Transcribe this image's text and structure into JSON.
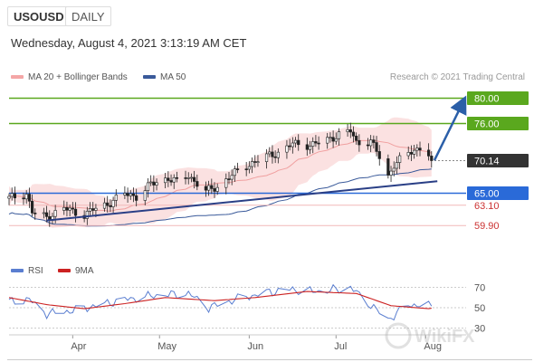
{
  "header": {
    "symbol": "USOUSD",
    "timeframe": "DAILY"
  },
  "timestamp": "Wednesday, August 4, 2021 3:13:19 AM CET",
  "legend": {
    "ma20": {
      "label": "MA 20 + Bollinger Bands",
      "color": "#f4a6a6"
    },
    "ma50": {
      "label": "MA 50",
      "color": "#3a5a9a"
    }
  },
  "credit": "Research © 2021 Trading Central",
  "rsi_legend": {
    "rsi": {
      "label": "RSI",
      "color": "#5a7ed0"
    },
    "ma9": {
      "label": "9MA",
      "color": "#cc2222"
    }
  },
  "watermark": "WikiFX",
  "chart_data": [
    {
      "type": "candlestick",
      "title": "",
      "ylim": [
        55.5,
        81.5
      ],
      "x_tick_labels": [
        "Apr",
        "May",
        "Jun",
        "Jul",
        "Aug"
      ],
      "levels": [
        {
          "value": 80.0,
          "label": "80.00",
          "color": "#5aa81e",
          "style": "solid-line"
        },
        {
          "value": 76.0,
          "label": "76.00",
          "color": "#5aa81e",
          "style": "solid-line"
        },
        {
          "value": 70.14,
          "label": "70.14",
          "color": "#333333",
          "style": "current-price"
        },
        {
          "value": 65.0,
          "label": "65.00",
          "color": "#2a6ad8",
          "style": "solid-line"
        },
        {
          "value": 63.1,
          "label": "63.10",
          "color": "#cc3333",
          "style": "light-line"
        },
        {
          "value": 59.9,
          "label": "59.90",
          "color": "#cc3333",
          "style": "light-line"
        }
      ],
      "trendline": {
        "start": {
          "date": "2021-03-23",
          "value": 60.7
        },
        "end": {
          "date": "2021-08-05",
          "value": 66.9
        }
      },
      "projection": {
        "start": {
          "date": "2021-08-04",
          "value": 70.2
        },
        "end": {
          "date": "2021-08-13",
          "value": 80.0
        }
      },
      "close_series": [
        {
          "date": "2021-03-10",
          "close": 64.2
        },
        {
          "date": "2021-03-16",
          "close": 64.9
        },
        {
          "date": "2021-03-18",
          "close": 62.0
        },
        {
          "date": "2021-03-23",
          "close": 61.2
        },
        {
          "date": "2021-03-29",
          "close": 62.6
        },
        {
          "date": "2021-04-05",
          "close": 61.6
        },
        {
          "date": "2021-04-08",
          "close": 62.4
        },
        {
          "date": "2021-04-13",
          "close": 63.3
        },
        {
          "date": "2021-04-19",
          "close": 64.9
        },
        {
          "date": "2021-04-23",
          "close": 64.5
        },
        {
          "date": "2021-04-28",
          "close": 66.4
        },
        {
          "date": "2021-05-04",
          "close": 67.4
        },
        {
          "date": "2021-05-07",
          "close": 66.8
        },
        {
          "date": "2021-05-11",
          "close": 67.8
        },
        {
          "date": "2021-05-17",
          "close": 65.3
        },
        {
          "date": "2021-05-21",
          "close": 66.0
        },
        {
          "date": "2021-05-26",
          "close": 67.9
        },
        {
          "date": "2021-06-01",
          "close": 69.6
        },
        {
          "date": "2021-06-07",
          "close": 70.8
        },
        {
          "date": "2021-06-11",
          "close": 71.4
        },
        {
          "date": "2021-06-16",
          "close": 72.8
        },
        {
          "date": "2021-06-22",
          "close": 72.6
        },
        {
          "date": "2021-06-28",
          "close": 73.4
        },
        {
          "date": "2021-07-02",
          "close": 74.3
        },
        {
          "date": "2021-07-06",
          "close": 74.8
        },
        {
          "date": "2021-07-08",
          "close": 73.0
        },
        {
          "date": "2021-07-13",
          "close": 73.2
        },
        {
          "date": "2021-07-15",
          "close": 71.6
        },
        {
          "date": "2021-07-19",
          "close": 67.6
        },
        {
          "date": "2021-07-21",
          "close": 69.6
        },
        {
          "date": "2021-07-26",
          "close": 71.2
        },
        {
          "date": "2021-07-30",
          "close": 72.3
        },
        {
          "date": "2021-08-02",
          "close": 71.2
        },
        {
          "date": "2021-08-03",
          "close": 70.14
        }
      ]
    },
    {
      "type": "line",
      "title": "",
      "ylim": [
        25,
        75
      ],
      "y_tick_labels": [
        "70",
        "50",
        "30"
      ],
      "series": [
        {
          "name": "RSI",
          "values": [
            {
              "date": "2021-03-10",
              "value": 56
            },
            {
              "date": "2021-03-17",
              "value": 58
            },
            {
              "date": "2021-03-23",
              "value": 44
            },
            {
              "date": "2021-04-01",
              "value": 47
            },
            {
              "date": "2021-04-09",
              "value": 52
            },
            {
              "date": "2021-04-19",
              "value": 58
            },
            {
              "date": "2021-04-29",
              "value": 62
            },
            {
              "date": "2021-05-11",
              "value": 64
            },
            {
              "date": "2021-05-18",
              "value": 50
            },
            {
              "date": "2021-05-27",
              "value": 58
            },
            {
              "date": "2021-06-07",
              "value": 65
            },
            {
              "date": "2021-06-16",
              "value": 68
            },
            {
              "date": "2021-06-25",
              "value": 66
            },
            {
              "date": "2021-07-06",
              "value": 70
            },
            {
              "date": "2021-07-12",
              "value": 55
            },
            {
              "date": "2021-07-19",
              "value": 38
            },
            {
              "date": "2021-07-26",
              "value": 53
            },
            {
              "date": "2021-08-02",
              "value": 52
            },
            {
              "date": "2021-08-04",
              "value": 48
            }
          ]
        },
        {
          "name": "9MA",
          "values": [
            {
              "date": "2021-03-10",
              "value": 60
            },
            {
              "date": "2021-03-23",
              "value": 53
            },
            {
              "date": "2021-04-05",
              "value": 49
            },
            {
              "date": "2021-04-19",
              "value": 54
            },
            {
              "date": "2021-05-03",
              "value": 60
            },
            {
              "date": "2021-05-20",
              "value": 57
            },
            {
              "date": "2021-06-03",
              "value": 60
            },
            {
              "date": "2021-06-21",
              "value": 66
            },
            {
              "date": "2021-07-08",
              "value": 64
            },
            {
              "date": "2021-07-20",
              "value": 52
            },
            {
              "date": "2021-08-02",
              "value": 49
            },
            {
              "date": "2021-08-04",
              "value": 50
            }
          ]
        }
      ]
    }
  ]
}
